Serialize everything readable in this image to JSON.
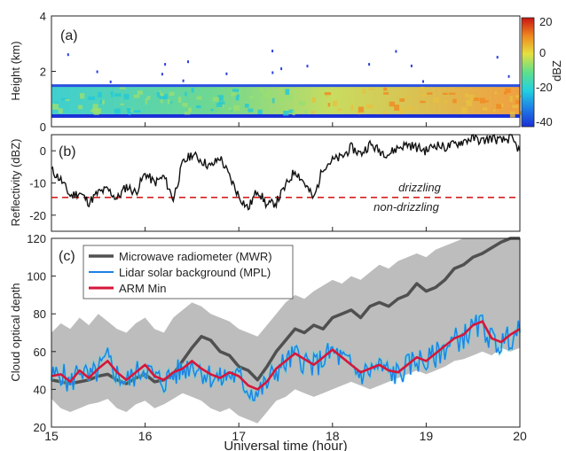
{
  "figure": {
    "xlabel": "Universal time (hour)",
    "x_ticks": [
      "15",
      "16",
      "17",
      "18",
      "19",
      "20"
    ]
  },
  "colors": {
    "mwr": "#505050",
    "mpl": "#1f7fe6",
    "mpl_halo": "#40e0e8",
    "arm": "#d6163a",
    "spread": "#bdbdbd",
    "threshold": "#d42020"
  },
  "chart_data": [
    {
      "panel": "(a)",
      "type": "heatmap",
      "ylabel": "Height (km)",
      "xlim": [
        15,
        20
      ],
      "ylim": [
        0,
        4
      ],
      "y_ticks": [
        "0",
        "2",
        "4"
      ],
      "colorbar": {
        "label": "dBZ",
        "range": [
          -40,
          20
        ],
        "ticks": [
          "20",
          "0",
          "-20",
          "-40"
        ]
      },
      "cloud_layer": {
        "base_km": 0.45,
        "top_km": 1.5,
        "reflectivity_dBZ_range": [
          -25,
          10
        ]
      }
    },
    {
      "panel": "(b)",
      "type": "line",
      "ylabel": "Reflectivity (dBZ)",
      "xlim": [
        15,
        20
      ],
      "ylim": [
        -25,
        5
      ],
      "y_ticks": [
        "0",
        "-10",
        "-20"
      ],
      "threshold": {
        "value": -14.5,
        "label_above": "drizzling",
        "label_below": "non-drizzling"
      },
      "x": [
        15.0,
        15.1,
        15.2,
        15.3,
        15.4,
        15.5,
        15.6,
        15.7,
        15.8,
        15.9,
        16.0,
        16.1,
        16.2,
        16.3,
        16.4,
        16.5,
        16.6,
        16.7,
        16.8,
        16.9,
        17.0,
        17.1,
        17.2,
        17.3,
        17.4,
        17.5,
        17.6,
        17.7,
        17.8,
        17.9,
        18.0,
        18.1,
        18.2,
        18.3,
        18.4,
        18.5,
        18.6,
        18.7,
        18.8,
        18.9,
        19.0,
        19.1,
        19.2,
        19.3,
        19.4,
        19.5,
        19.6,
        19.7,
        19.8,
        19.9,
        20.0
      ],
      "values": [
        -6,
        -9,
        -14,
        -13,
        -16,
        -13,
        -12,
        -15,
        -11,
        -13,
        -7,
        -10,
        -8,
        -15,
        -4,
        -1,
        -3,
        -5,
        -2,
        -8,
        -14,
        -18,
        -12,
        -17,
        -16,
        -11,
        -6,
        -10,
        -15,
        -5,
        -3,
        -2,
        1,
        -1,
        2,
        0,
        -1,
        1,
        2,
        1,
        0,
        2,
        1,
        2,
        3,
        4,
        3,
        4,
        3,
        4,
        0
      ]
    },
    {
      "panel": "(c)",
      "type": "line",
      "ylabel": "Cloud optical depth",
      "xlim": [
        15,
        20
      ],
      "ylim": [
        20,
        120
      ],
      "y_ticks": [
        "20",
        "40",
        "60",
        "80",
        "100",
        "120"
      ],
      "legend": "top-left",
      "x": [
        15.0,
        15.1,
        15.2,
        15.3,
        15.4,
        15.5,
        15.6,
        15.7,
        15.8,
        15.9,
        16.0,
        16.1,
        16.2,
        16.3,
        16.4,
        16.5,
        16.6,
        16.7,
        16.8,
        16.9,
        17.0,
        17.1,
        17.2,
        17.3,
        17.4,
        17.5,
        17.6,
        17.7,
        17.8,
        17.9,
        18.0,
        18.1,
        18.2,
        18.3,
        18.4,
        18.5,
        18.6,
        18.7,
        18.8,
        18.9,
        19.0,
        19.1,
        19.2,
        19.3,
        19.4,
        19.5,
        19.6,
        19.7,
        19.8,
        19.9,
        20.0
      ],
      "spread_low": [
        35,
        30,
        28,
        30,
        32,
        33,
        35,
        30,
        28,
        32,
        34,
        30,
        32,
        35,
        38,
        36,
        34,
        30,
        28,
        30,
        26,
        24,
        22,
        28,
        34,
        36,
        40,
        38,
        36,
        38,
        40,
        42,
        44,
        42,
        40,
        42,
        44,
        46,
        48,
        50,
        48,
        50,
        52,
        55,
        56,
        58,
        60,
        58,
        62,
        60,
        62
      ],
      "spread_high": [
        70,
        75,
        72,
        78,
        74,
        80,
        76,
        72,
        70,
        75,
        78,
        72,
        70,
        78,
        82,
        86,
        84,
        80,
        78,
        76,
        72,
        70,
        68,
        74,
        80,
        86,
        90,
        88,
        92,
        95,
        98,
        96,
        100,
        98,
        102,
        106,
        104,
        108,
        110,
        112,
        110,
        114,
        116,
        118,
        120,
        120,
        120,
        120,
        120,
        120,
        120
      ],
      "series": [
        {
          "name": "Microwave radiometer (MWR)",
          "values": [
            45,
            44,
            43,
            44,
            45,
            47,
            48,
            45,
            43,
            46,
            48,
            44,
            45,
            48,
            55,
            62,
            68,
            66,
            60,
            58,
            52,
            50,
            45,
            52,
            60,
            66,
            72,
            70,
            74,
            72,
            78,
            80,
            82,
            78,
            84,
            86,
            84,
            88,
            90,
            96,
            92,
            94,
            98,
            104,
            106,
            110,
            112,
            115,
            118,
            120,
            120
          ]
        },
        {
          "name": "Lidar solar background (MPL)",
          "values": [
            46,
            49,
            42,
            52,
            45,
            50,
            56,
            48,
            44,
            48,
            52,
            46,
            44,
            48,
            50,
            54,
            50,
            47,
            45,
            48,
            46,
            40,
            38,
            43,
            50,
            54,
            58,
            55,
            52,
            56,
            60,
            56,
            52,
            48,
            50,
            52,
            49,
            48,
            52,
            56,
            54,
            58,
            62,
            66,
            68,
            72,
            74,
            66,
            64,
            68,
            70
          ]
        },
        {
          "name": "ARM Min",
          "values": [
            47,
            48,
            44,
            50,
            46,
            51,
            55,
            49,
            45,
            49,
            53,
            47,
            45,
            49,
            51,
            55,
            51,
            48,
            46,
            49,
            47,
            42,
            40,
            44,
            51,
            55,
            59,
            56,
            53,
            57,
            61,
            57,
            53,
            49,
            51,
            53,
            50,
            49,
            53,
            57,
            55,
            59,
            63,
            67,
            69,
            74,
            76,
            67,
            65,
            69,
            72
          ]
        }
      ]
    }
  ]
}
